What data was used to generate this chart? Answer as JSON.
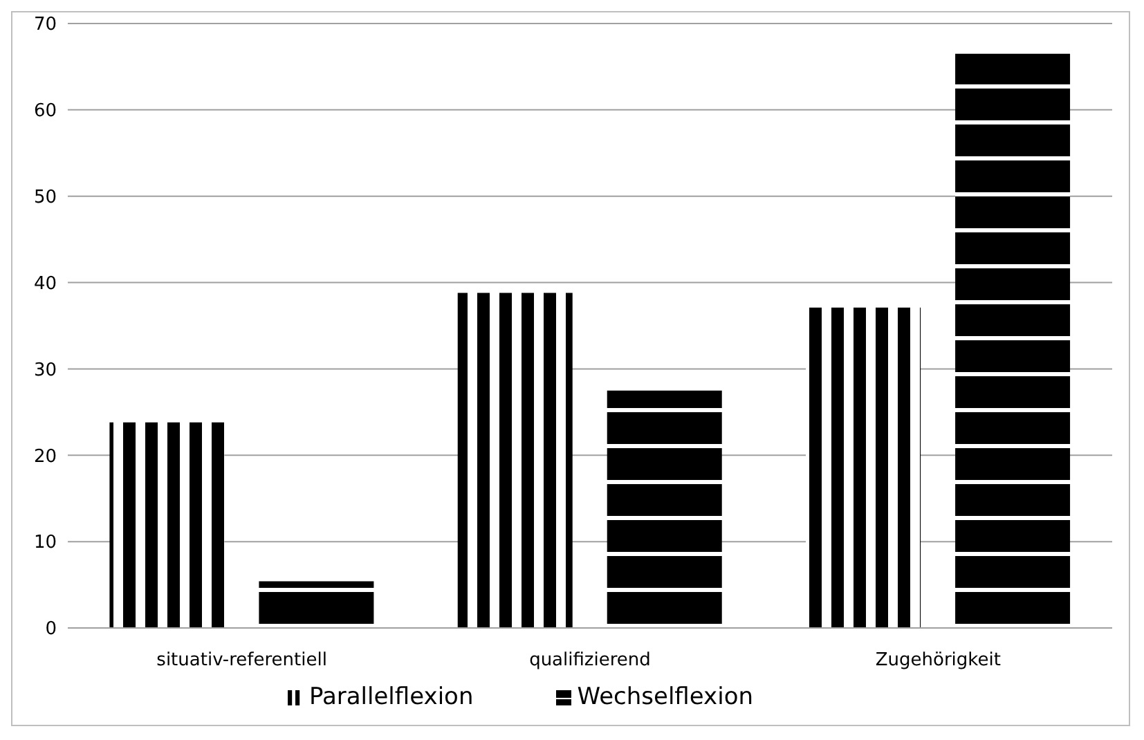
{
  "chart_data": {
    "type": "bar",
    "categories": [
      "situativ-referentiell",
      "qualifizierend",
      "Zugehörigkeit"
    ],
    "series": [
      {
        "name": "Parallelflexion",
        "color": "#000000",
        "values": [
          23.8,
          38.8,
          37.1
        ]
      },
      {
        "name": "Wechselflexion",
        "color": "#000000",
        "values": [
          5.4,
          27.5,
          66.5
        ]
      }
    ],
    "ylim": [
      0,
      70
    ],
    "yticks": [
      0,
      10,
      20,
      30,
      40,
      50,
      60,
      70
    ],
    "grid": "y",
    "legend": "bottom"
  }
}
